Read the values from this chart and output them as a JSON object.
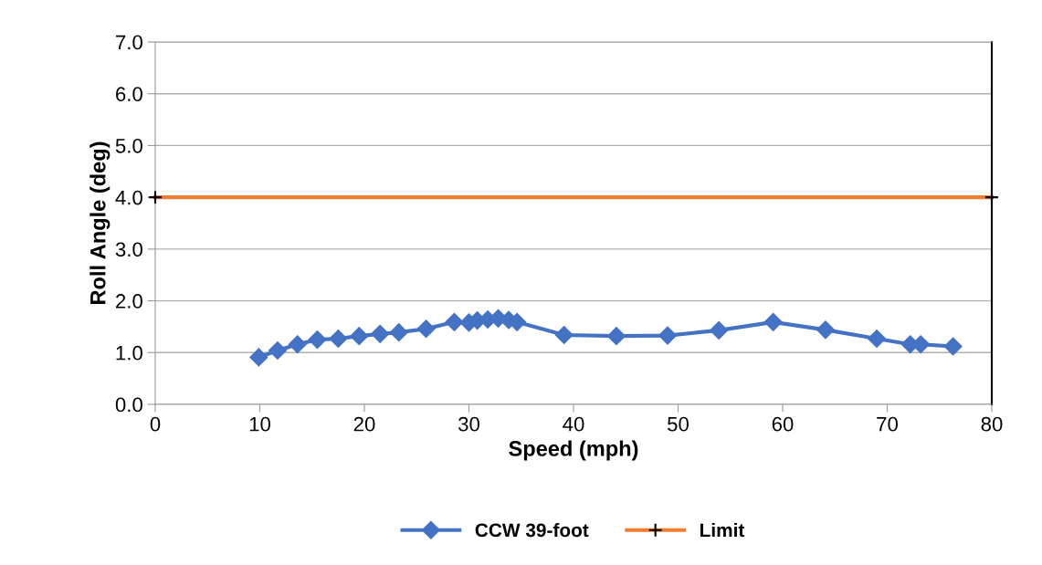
{
  "chart_data": {
    "type": "line",
    "xlabel": "Speed (mph)",
    "ylabel": "Roll Angle (deg)",
    "xlim": [
      0,
      80
    ],
    "xticks": [
      0,
      10,
      20,
      30,
      40,
      50,
      60,
      70,
      80
    ],
    "ylim": [
      0,
      7
    ],
    "yticks": [
      {
        "value": 0,
        "label": "0.0"
      },
      {
        "value": 1,
        "label": "1.0"
      },
      {
        "value": 2,
        "label": "2.0"
      },
      {
        "value": 3,
        "label": "3.0"
      },
      {
        "value": 4,
        "label": "4.0"
      },
      {
        "value": 5,
        "label": "5.0"
      },
      {
        "value": 6,
        "label": "6.0"
      },
      {
        "value": 7,
        "label": "7.0"
      }
    ],
    "grid": "y",
    "legend": "bottom",
    "series": [
      {
        "name": "CCW 39-foot",
        "color": "#4472c4",
        "marker": "diamond",
        "x": [
          9.9,
          11.7,
          13.6,
          15.5,
          17.5,
          19.5,
          21.5,
          23.3,
          25.9,
          28.6,
          30.0,
          30.8,
          31.8,
          32.8,
          33.8,
          34.6,
          39.1,
          44.1,
          49.0,
          53.9,
          59.1,
          64.1,
          69.0,
          72.2,
          73.2,
          76.3
        ],
        "values": [
          0.91,
          1.04,
          1.16,
          1.25,
          1.27,
          1.32,
          1.36,
          1.39,
          1.46,
          1.59,
          1.58,
          1.62,
          1.64,
          1.66,
          1.63,
          1.59,
          1.34,
          1.32,
          1.33,
          1.43,
          1.59,
          1.44,
          1.27,
          1.16,
          1.16,
          1.12
        ]
      },
      {
        "name": "Limit",
        "color": "#ed7d31",
        "marker": "cross",
        "x": [
          0,
          80
        ],
        "values": [
          4.0,
          4.0
        ]
      }
    ]
  }
}
